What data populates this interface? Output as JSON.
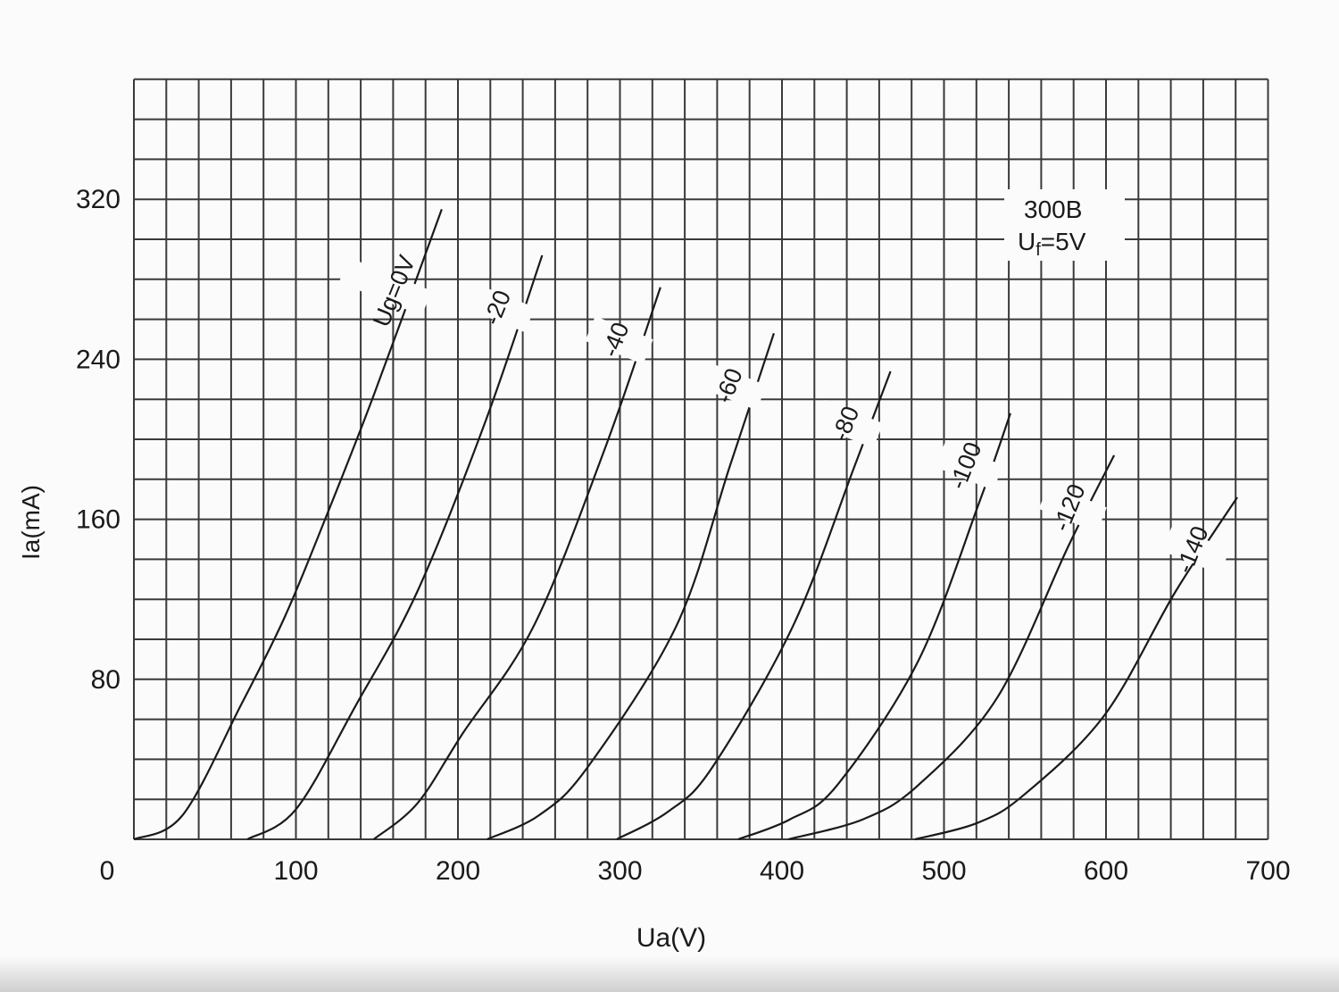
{
  "chart_data": {
    "type": "line",
    "title": "",
    "annotations": {
      "tube": "300B",
      "filament_main": "U",
      "filament_sub": "f",
      "filament_value": "=5V"
    },
    "xlabel": "Ua(V)",
    "ylabel": "Ia(mA)",
    "xlim": [
      0,
      700
    ],
    "ylim": [
      0,
      380
    ],
    "x_ticks": [
      0,
      100,
      200,
      300,
      400,
      500,
      600,
      700
    ],
    "x_tick_labels": [
      "0",
      "100",
      "200",
      "300",
      "400",
      "500",
      "600",
      "700"
    ],
    "y_ticks": [
      80,
      160,
      240,
      320
    ],
    "y_tick_labels": [
      "80",
      "160",
      "240",
      "320"
    ],
    "grid": true,
    "grid_step": {
      "x": 20,
      "y": 20
    },
    "line_color": "#1a1a1a",
    "series": [
      {
        "name": "Ug=0V",
        "points": [
          [
            0,
            0
          ],
          [
            30,
            12
          ],
          [
            66,
            67
          ],
          [
            93,
            111
          ],
          [
            118,
            160
          ],
          [
            148,
            222
          ],
          [
            190,
            315
          ]
        ]
      },
      {
        "name": "-20",
        "points": [
          [
            70,
            0
          ],
          [
            100,
            15
          ],
          [
            137,
            67
          ],
          [
            175,
            124
          ],
          [
            217,
            209
          ],
          [
            252,
            292
          ]
        ]
      },
      {
        "name": "-40",
        "points": [
          [
            148,
            0
          ],
          [
            175,
            18
          ],
          [
            203,
            53
          ],
          [
            247,
            107
          ],
          [
            291,
            196
          ],
          [
            325,
            276
          ]
        ]
      },
      {
        "name": "-60",
        "points": [
          [
            218,
            0
          ],
          [
            250,
            12
          ],
          [
            280,
            36
          ],
          [
            335,
            107
          ],
          [
            368,
            187
          ],
          [
            395,
            253
          ]
        ]
      },
      {
        "name": "-80",
        "points": [
          [
            298,
            0
          ],
          [
            330,
            14
          ],
          [
            357,
            36
          ],
          [
            407,
            107
          ],
          [
            445,
            187
          ],
          [
            467,
            234
          ]
        ]
      },
      {
        "name": "-100",
        "points": [
          [
            373,
            0
          ],
          [
            405,
            10
          ],
          [
            434,
            27
          ],
          [
            484,
            89
          ],
          [
            522,
            169
          ],
          [
            541,
            213
          ]
        ]
      },
      {
        "name": "-120",
        "points": [
          [
            404,
            0
          ],
          [
            450,
            10
          ],
          [
            484,
            27
          ],
          [
            533,
            71
          ],
          [
            577,
            147
          ],
          [
            605,
            192
          ]
        ]
      },
      {
        "name": "-140",
        "points": [
          [
            482,
            0
          ],
          [
            520,
            8
          ],
          [
            549,
            22
          ],
          [
            599,
            62
          ],
          [
            643,
            124
          ],
          [
            681,
            171
          ]
        ]
      }
    ]
  }
}
